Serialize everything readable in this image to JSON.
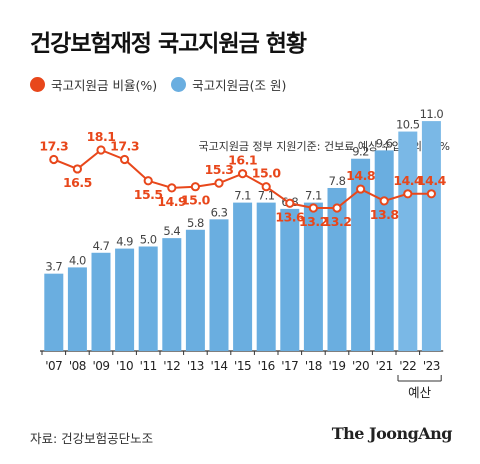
{
  "title": "건강보험재정 국고지원금 현황",
  "note": "국고지원금 정부 지원기준: 건보료 예상 수입액의 20%",
  "source": "자료: 건강보험공단노조",
  "brand": "The JoongAng",
  "forecast_label": "예산",
  "colors": {
    "line": "#e8471b",
    "bar": "#6aaee0",
    "bar_forecast": "#7ab8e6",
    "text": "#333333"
  },
  "chart_data": {
    "type": "bar+line",
    "categories": [
      "'07",
      "'08",
      "'09",
      "'10",
      "'11",
      "'12",
      "'13",
      "'14",
      "'15",
      "'16",
      "'17",
      "'18",
      "'19",
      "'20",
      "'21",
      "'22",
      "'23"
    ],
    "series": [
      {
        "name": "국고지원금 비율(%)",
        "type": "line",
        "values": [
          17.3,
          16.5,
          18.1,
          17.3,
          15.5,
          14.9,
          15.0,
          15.3,
          16.1,
          15.0,
          13.6,
          13.2,
          13.2,
          14.8,
          13.8,
          14.4,
          14.4
        ]
      },
      {
        "name": "국고지원금(조 원)",
        "type": "bar",
        "values": [
          3.7,
          4.0,
          4.7,
          4.9,
          5.0,
          5.4,
          5.8,
          6.3,
          7.1,
          7.1,
          6.8,
          7.1,
          7.8,
          9.2,
          9.6,
          10.5,
          11.0
        ]
      }
    ],
    "forecast_categories": [
      "'22",
      "'23"
    ]
  }
}
